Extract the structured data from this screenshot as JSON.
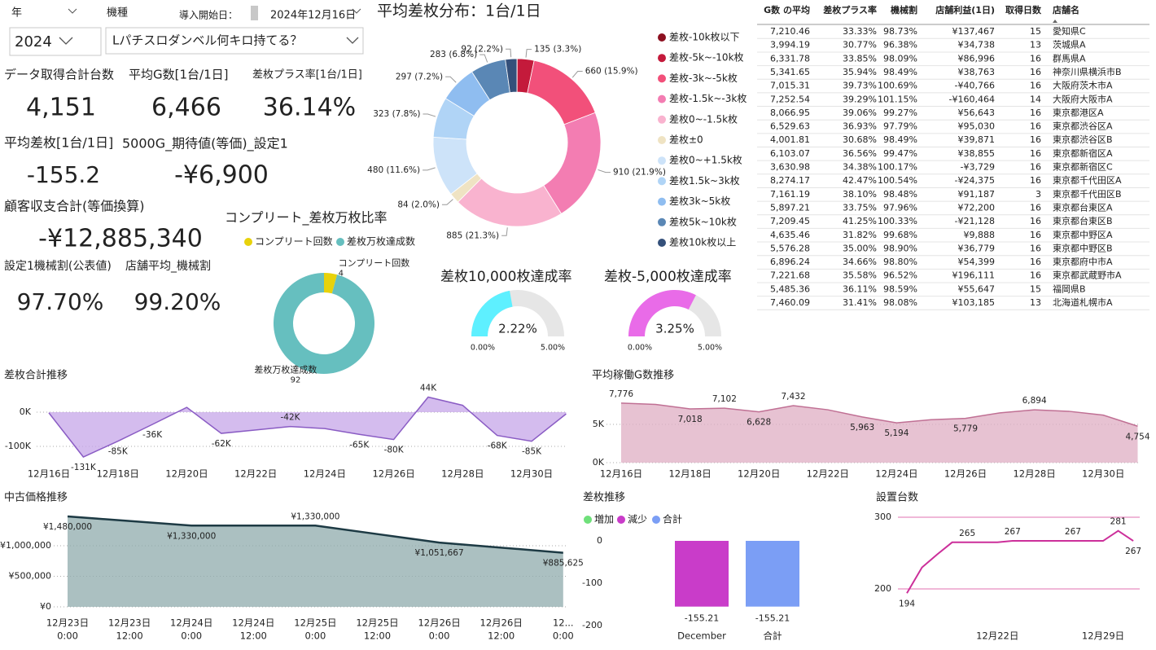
{
  "filters": {
    "year_label": "年",
    "year_value": "2024",
    "model_label": "機種",
    "model_value": "Lパチスロダンベル何キロ持てる？",
    "start_label": "導入開始日：",
    "start_value": "2024年12月16日"
  },
  "kpis": [
    {
      "label": "データ取得合計台数",
      "value": "4,151"
    },
    {
      "label": "平均G数[1台/1日]",
      "value": "6,466"
    },
    {
      "label": "差枚プラス率[1台/1日]",
      "value": "36.14%"
    },
    {
      "label": "平均差枚[1台/1日]",
      "value": "-155.2"
    },
    {
      "label": "5000G_期待値(等価)_設定1",
      "value": "-¥6,900",
      "label_color": "#b8508a",
      "value_color": "#f07cb0"
    },
    {
      "label": "顧客収支合計(等価換算)",
      "value": "-¥12,885,340"
    },
    {
      "label": "設定1機械割(公表値)",
      "value": "97.70%",
      "label_color": "#d4508a",
      "value_color": "#f07cb0"
    },
    {
      "label": "店舗平均_機械割",
      "value": "99.20%"
    }
  ],
  "distribution": {
    "type": "donut",
    "title": "平均差枚分布：1台/1日",
    "categories": [
      "差枚-10k枚以下",
      "差枚-5k~-10k枚",
      "差枚-3k~-5k枚",
      "差枚-1.5k~-3k枚",
      "差枚0~-1.5k枚",
      "差枚±0",
      "差枚0~+1.5k枚",
      "差枚1.5k~3k枚",
      "差枚3k~5k枚",
      "差枚5k~10k枚",
      "差枚10k枚以上"
    ],
    "colors": [
      "#8c1020",
      "#c41a3b",
      "#f2507a",
      "#f37db2",
      "#f9b3cf",
      "#efe3c3",
      "#cde3f9",
      "#b0d4f6",
      "#8fbdf0",
      "#5a87b5",
      "#34507a"
    ],
    "values": [
      2,
      135,
      660,
      910,
      885,
      84,
      480,
      323,
      297,
      283,
      92
    ],
    "value_labels": [
      null,
      "135 (3.3%)",
      "660 (15.9%)",
      "910 (21.9%)",
      "885 (21.3%)",
      "84 (2.0%)",
      "480 (11.6%)",
      "323 (7.8%)",
      "297 (7.2%)",
      "283 (6.8%)",
      "92 (2.2%)"
    ]
  },
  "complete": {
    "type": "donut",
    "title": "コンプリート_差枚万枚比率",
    "categories": [
      "コンプリート回数",
      "差枚万枚達成数"
    ],
    "colors": [
      "#e8d20b",
      "#66bfbf"
    ],
    "values": [
      4,
      92
    ]
  },
  "gauges": [
    {
      "type": "gauge",
      "title": "差枚10,000枚達成率",
      "value": 2.22,
      "value_label": "2.22%",
      "min": {
        "value": 0,
        "label": "0.00%"
      },
      "max": {
        "value": 5,
        "label": "5.00%"
      },
      "color": "#5ef0ff"
    },
    {
      "type": "gauge",
      "title": "差枚-5,000枚達成率",
      "value": 3.25,
      "value_label": "3.25%",
      "min": {
        "value": 0,
        "label": "0.00%"
      },
      "max": {
        "value": 5,
        "label": "5.00%"
      },
      "color": "#e96be8"
    }
  ],
  "table": {
    "columns": [
      "G数 の平均",
      "差枚プラス率",
      "機械割",
      "店舗利益(1日)",
      "取得日数",
      "店舗名"
    ],
    "rows": [
      [
        "7,210.46",
        "33.33%",
        "98.73%",
        "¥137,467",
        "15",
        "愛知県C"
      ],
      [
        "3,994.19",
        "30.77%",
        "96.38%",
        "¥34,738",
        "13",
        "茨城県A"
      ],
      [
        "6,331.78",
        "33.85%",
        "98.09%",
        "¥86,996",
        "16",
        "群馬県A"
      ],
      [
        "5,341.65",
        "35.94%",
        "98.49%",
        "¥38,763",
        "16",
        "神奈川県横浜市B"
      ],
      [
        "7,015.31",
        "39.73%",
        "100.69%",
        "-¥40,766",
        "16",
        "大阪府茨木市A"
      ],
      [
        "7,252.54",
        "39.29%",
        "101.15%",
        "-¥160,464",
        "14",
        "大阪府大阪市A"
      ],
      [
        "8,066.95",
        "39.06%",
        "99.27%",
        "¥56,643",
        "16",
        "東京都港区A"
      ],
      [
        "6,529.63",
        "36.93%",
        "97.79%",
        "¥95,030",
        "16",
        "東京都渋谷区A"
      ],
      [
        "4,001.81",
        "30.68%",
        "98.49%",
        "¥39,871",
        "16",
        "東京都渋谷区B"
      ],
      [
        "6,103.07",
        "36.56%",
        "99.47%",
        "¥38,855",
        "16",
        "東京都新宿区A"
      ],
      [
        "3,630.98",
        "34.38%",
        "100.17%",
        "-¥3,729",
        "16",
        "東京都新宿区C"
      ],
      [
        "8,274.17",
        "42.47%",
        "100.54%",
        "-¥24,375",
        "16",
        "東京都千代田区A"
      ],
      [
        "7,161.19",
        "38.10%",
        "98.48%",
        "¥91,187",
        "3",
        "東京都千代田区B"
      ],
      [
        "5,897.21",
        "33.75%",
        "97.96%",
        "¥72,200",
        "16",
        "東京都台東区A"
      ],
      [
        "7,209.45",
        "41.25%",
        "100.33%",
        "-¥21,128",
        "16",
        "東京都台東区B"
      ],
      [
        "4,635.46",
        "31.82%",
        "99.68%",
        "¥9,888",
        "16",
        "東京都中野区A"
      ],
      [
        "5,576.28",
        "35.00%",
        "98.90%",
        "¥36,779",
        "16",
        "東京都中野区B"
      ],
      [
        "6,896.24",
        "34.66%",
        "98.80%",
        "¥54,399",
        "16",
        "東京都府中市A"
      ],
      [
        "7,221.68",
        "35.58%",
        "96.52%",
        "¥196,111",
        "16",
        "東京都武蔵野市A"
      ],
      [
        "5,485.36",
        "36.11%",
        "98.59%",
        "¥55,647",
        "15",
        "福岡県B"
      ],
      [
        "7,460.09",
        "31.41%",
        "98.08%",
        "¥103,185",
        "13",
        "北海道札幌市A"
      ]
    ]
  },
  "diff_trend": {
    "type": "area",
    "title": "差枚合計推移",
    "categories": [
      "12月16日",
      null,
      "12月18日",
      null,
      "12月20日",
      null,
      "12月22日",
      null,
      "12月24日",
      null,
      "12月26日",
      null,
      "12月28日",
      null,
      "12月30日",
      null
    ],
    "values": [
      -2000,
      -131000,
      -85000,
      -36000,
      14000,
      -62000,
      -52000,
      -42000,
      -48000,
      -65000,
      -80000,
      44000,
      20000,
      -68000,
      -85000,
      -5000
    ],
    "value_labels": [
      null,
      "-131K",
      "-85K",
      "-36K",
      null,
      "-62K",
      null,
      "-42K",
      null,
      "-65K",
      "-80K",
      "44K",
      null,
      "-68K",
      "-85K",
      null
    ],
    "ylim": [
      -150000,
      50000
    ],
    "yticks": [
      {
        "value": 0,
        "label": "0K"
      },
      {
        "value": -100000,
        "label": "-100K"
      }
    ],
    "fill_color": "#c6a6e8",
    "line_color": "#8a5cc4"
  },
  "g_trend": {
    "type": "area",
    "title": "平均稼働G数推移",
    "categories": [
      "12月16日",
      null,
      "12月18日",
      null,
      "12月20日",
      null,
      "12月22日",
      null,
      "12月24日",
      null,
      "12月26日",
      null,
      "12月28日",
      null,
      "12月30日",
      null
    ],
    "values": [
      7776,
      7600,
      7018,
      7102,
      6628,
      7432,
      6900,
      5963,
      5194,
      5600,
      5779,
      6500,
      6894,
      6700,
      6200,
      4754
    ],
    "value_labels": [
      "7,776",
      null,
      "7,018",
      "7,102",
      "6,628",
      "7,432",
      null,
      "5,963",
      "5,194",
      null,
      "5,779",
      null,
      "6,894",
      null,
      null,
      "4,754"
    ],
    "ylim": [
      0,
      8500
    ],
    "yticks": [
      {
        "value": 5000,
        "label": "5K"
      },
      {
        "value": 0,
        "label": "0K"
      }
    ],
    "fill_color": "#dfaec3",
    "line_color": "#c07094"
  },
  "price_trend": {
    "type": "area",
    "title": "中古価格推移",
    "categories": [
      [
        "12月23日",
        "0:00"
      ],
      [
        "12月23日",
        "12:00"
      ],
      [
        "12月24日",
        "0:00"
      ],
      [
        "12月24日",
        "12:00"
      ],
      [
        "12月25日",
        "0:00"
      ],
      [
        "12月25日",
        "12:00"
      ],
      [
        "12月26日",
        "0:00"
      ],
      [
        "12月26日",
        "12:00"
      ],
      [
        "12...",
        "0:00"
      ]
    ],
    "values": [
      1480000,
      1405000,
      1330000,
      1330000,
      1330000,
      1190833,
      1051667,
      968646,
      885625
    ],
    "value_labels": [
      "¥1,480,000",
      null,
      "¥1,330,000",
      null,
      "¥1,330,000",
      null,
      "¥1,051,667",
      null,
      "¥885,625"
    ],
    "ylim": [
      0,
      1500000
    ],
    "yticks": [
      {
        "value": 0,
        "label": "¥0"
      },
      {
        "value": 500000,
        "label": "¥500,000"
      },
      {
        "value": 1000000,
        "label": "¥1,000,000"
      }
    ],
    "fill_color": "#8fabac",
    "line_color": "#1d3a44"
  },
  "waterfall": {
    "type": "waterfall",
    "title": "差枚推移",
    "legend": [
      {
        "name": "増加",
        "color": "#6fe07a"
      },
      {
        "name": "減少",
        "color": "#c93cc9"
      },
      {
        "name": "合計",
        "color": "#7b9ef5"
      }
    ],
    "categories": [
      "December",
      "合計"
    ],
    "values": [
      -155.21,
      -155.21
    ],
    "ylim": [
      -200,
      0
    ],
    "yticks": [
      0,
      -100,
      -200
    ]
  },
  "install": {
    "type": "line",
    "title": "設置台数",
    "categories": [
      null,
      null,
      null,
      null,
      null,
      null,
      "12月22日",
      null,
      null,
      null,
      null,
      null,
      null,
      "12月29日",
      null,
      null
    ],
    "values": [
      194,
      230,
      248,
      265,
      265,
      265,
      265,
      267,
      267,
      267,
      267,
      267,
      267,
      267,
      281,
      267
    ],
    "value_labels": [
      "194",
      null,
      null,
      null,
      "265",
      null,
      null,
      "267",
      null,
      null,
      null,
      "267",
      null,
      null,
      "281",
      "267"
    ],
    "ylim": [
      180,
      310
    ],
    "yticks": [
      300,
      200
    ],
    "line_color": "#cc2f9a",
    "grid_color": "#e070b0"
  }
}
